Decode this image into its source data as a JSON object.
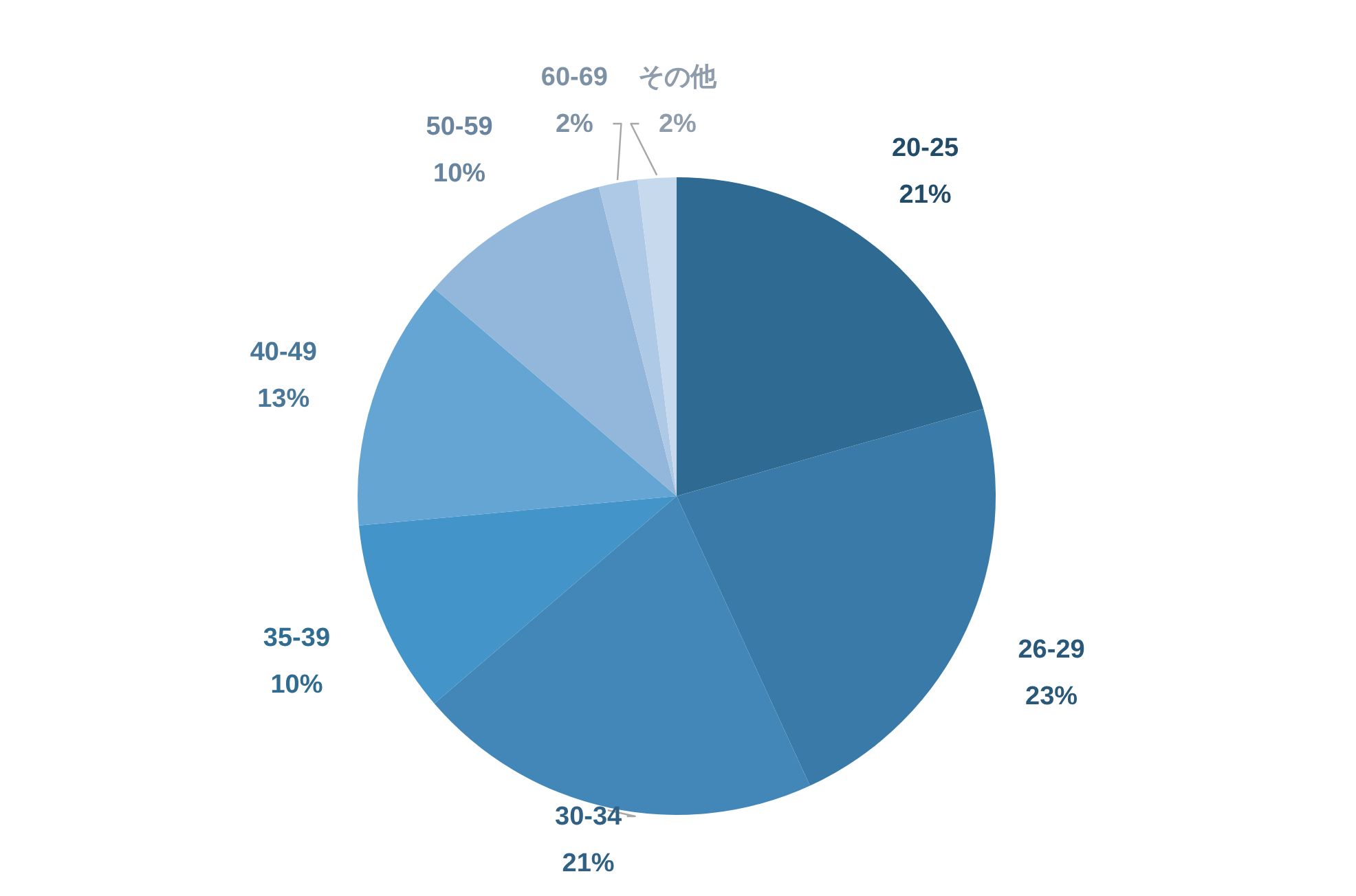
{
  "chart_data": {
    "type": "pie",
    "categories": [
      "20-25",
      "26-29",
      "30-34",
      "35-39",
      "40-49",
      "50-59",
      "60-69",
      "その他"
    ],
    "values": [
      21,
      23,
      21,
      10,
      13,
      10,
      2,
      2
    ],
    "value_labels": [
      "21%",
      "23%",
      "21%",
      "10%",
      "13%",
      "10%",
      "2%",
      "2%"
    ],
    "colors": [
      "#2e6a92",
      "#3a7aa8",
      "#4287b8",
      "#4394c8",
      "#65a5d4",
      "#92b7db",
      "#adc9e5",
      "#c6d9ed"
    ]
  }
}
